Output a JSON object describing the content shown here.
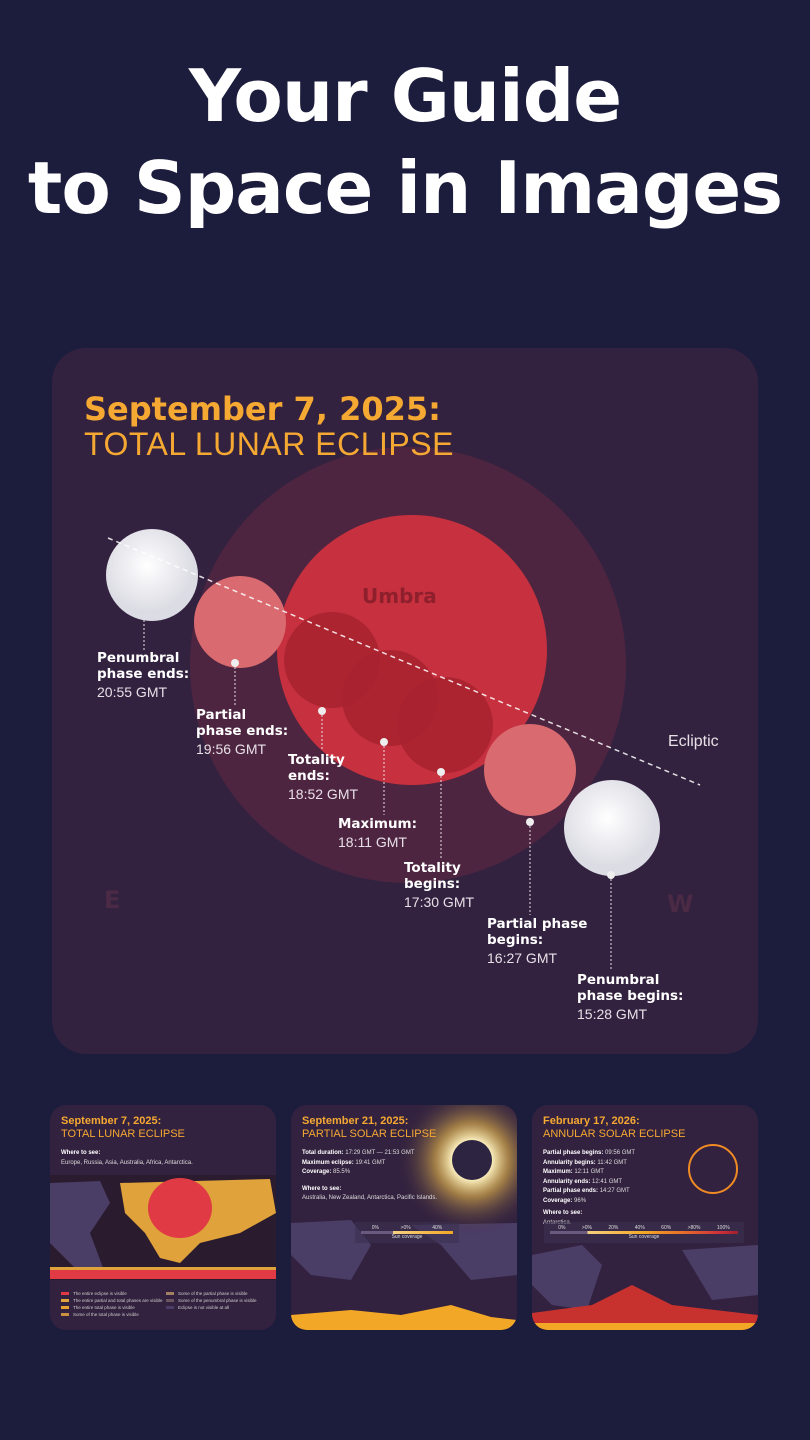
{
  "headline": {
    "line1": "Your Guide",
    "line2": "to Space in Images"
  },
  "main": {
    "date": "September 7, 2025:",
    "type": "TOTAL LUNAR ECLIPSE",
    "umbra_label": "Umbra",
    "ecliptic_label": "Ecliptic",
    "east": "E",
    "west": "W",
    "phases": [
      {
        "title": "Penumbral phase ends:",
        "time": "20:55 GMT"
      },
      {
        "title": "Partial phase ends:",
        "time": "19:56 GMT"
      },
      {
        "title": "Totality ends:",
        "time": "18:52 GMT"
      },
      {
        "title": "Maximum:",
        "time": "18:11 GMT"
      },
      {
        "title": "Totality begins:",
        "time": "17:30 GMT"
      },
      {
        "title": "Partial phase begins:",
        "time": "16:27 GMT"
      },
      {
        "title": "Penumbral phase begins:",
        "time": "15:28 GMT"
      }
    ],
    "colors": {
      "accent": "#f5a832",
      "umbra": "#c7303e",
      "penumbra": "#4e2540"
    }
  },
  "thumbs": [
    {
      "date": "September 7, 2025:",
      "type": "TOTAL LUNAR ECLIPSE",
      "where_label": "Where to see:",
      "where": "Europe, Russia, Asia, Australia, Africa, Antarctica.",
      "legend": [
        "The entire eclipse is visible",
        "Some of the partial phase is visible",
        "The entire partial and total phases are visible",
        "Some of the penumbral phase is visible",
        "The entire total phase is visible",
        "Eclipse is not visible at all",
        "Some of the total phase is visible"
      ]
    },
    {
      "date": "September 21, 2025:",
      "type": "PARTIAL SOLAR ECLIPSE",
      "rows": [
        {
          "k": "Total duration:",
          "v": "17:29 GMT — 21:53 GMT"
        },
        {
          "k": "Maximum eclipse:",
          "v": "19:41 GMT"
        },
        {
          "k": "Coverage:",
          "v": "85.5%"
        }
      ],
      "where_label": "Where to see:",
      "where": "Australia, New Zealand, Antarctica, Pacific Islands.",
      "scale": [
        "0%",
        ">0%",
        "40%"
      ],
      "scale_label": "Sun coverage"
    },
    {
      "date": "February 17, 2026:",
      "type": "ANNULAR SOLAR ECLIPSE",
      "rows": [
        {
          "k": "Partial phase begins:",
          "v": "09:56 GMT"
        },
        {
          "k": "Annularity begins:",
          "v": "11:42 GMT"
        },
        {
          "k": "Maximum:",
          "v": "12:11 GMT"
        },
        {
          "k": "Annularity ends:",
          "v": "12:41 GMT"
        },
        {
          "k": "Partial phase ends:",
          "v": "14:27 GMT"
        },
        {
          "k": "Coverage:",
          "v": "96%"
        }
      ],
      "where_label": "Where to see:",
      "where": "Antarctica.",
      "scale": [
        "0%",
        ">0%",
        "20%",
        "40%",
        "60%",
        ">80%",
        "100%"
      ],
      "scale_label": "Sun coverage"
    }
  ]
}
